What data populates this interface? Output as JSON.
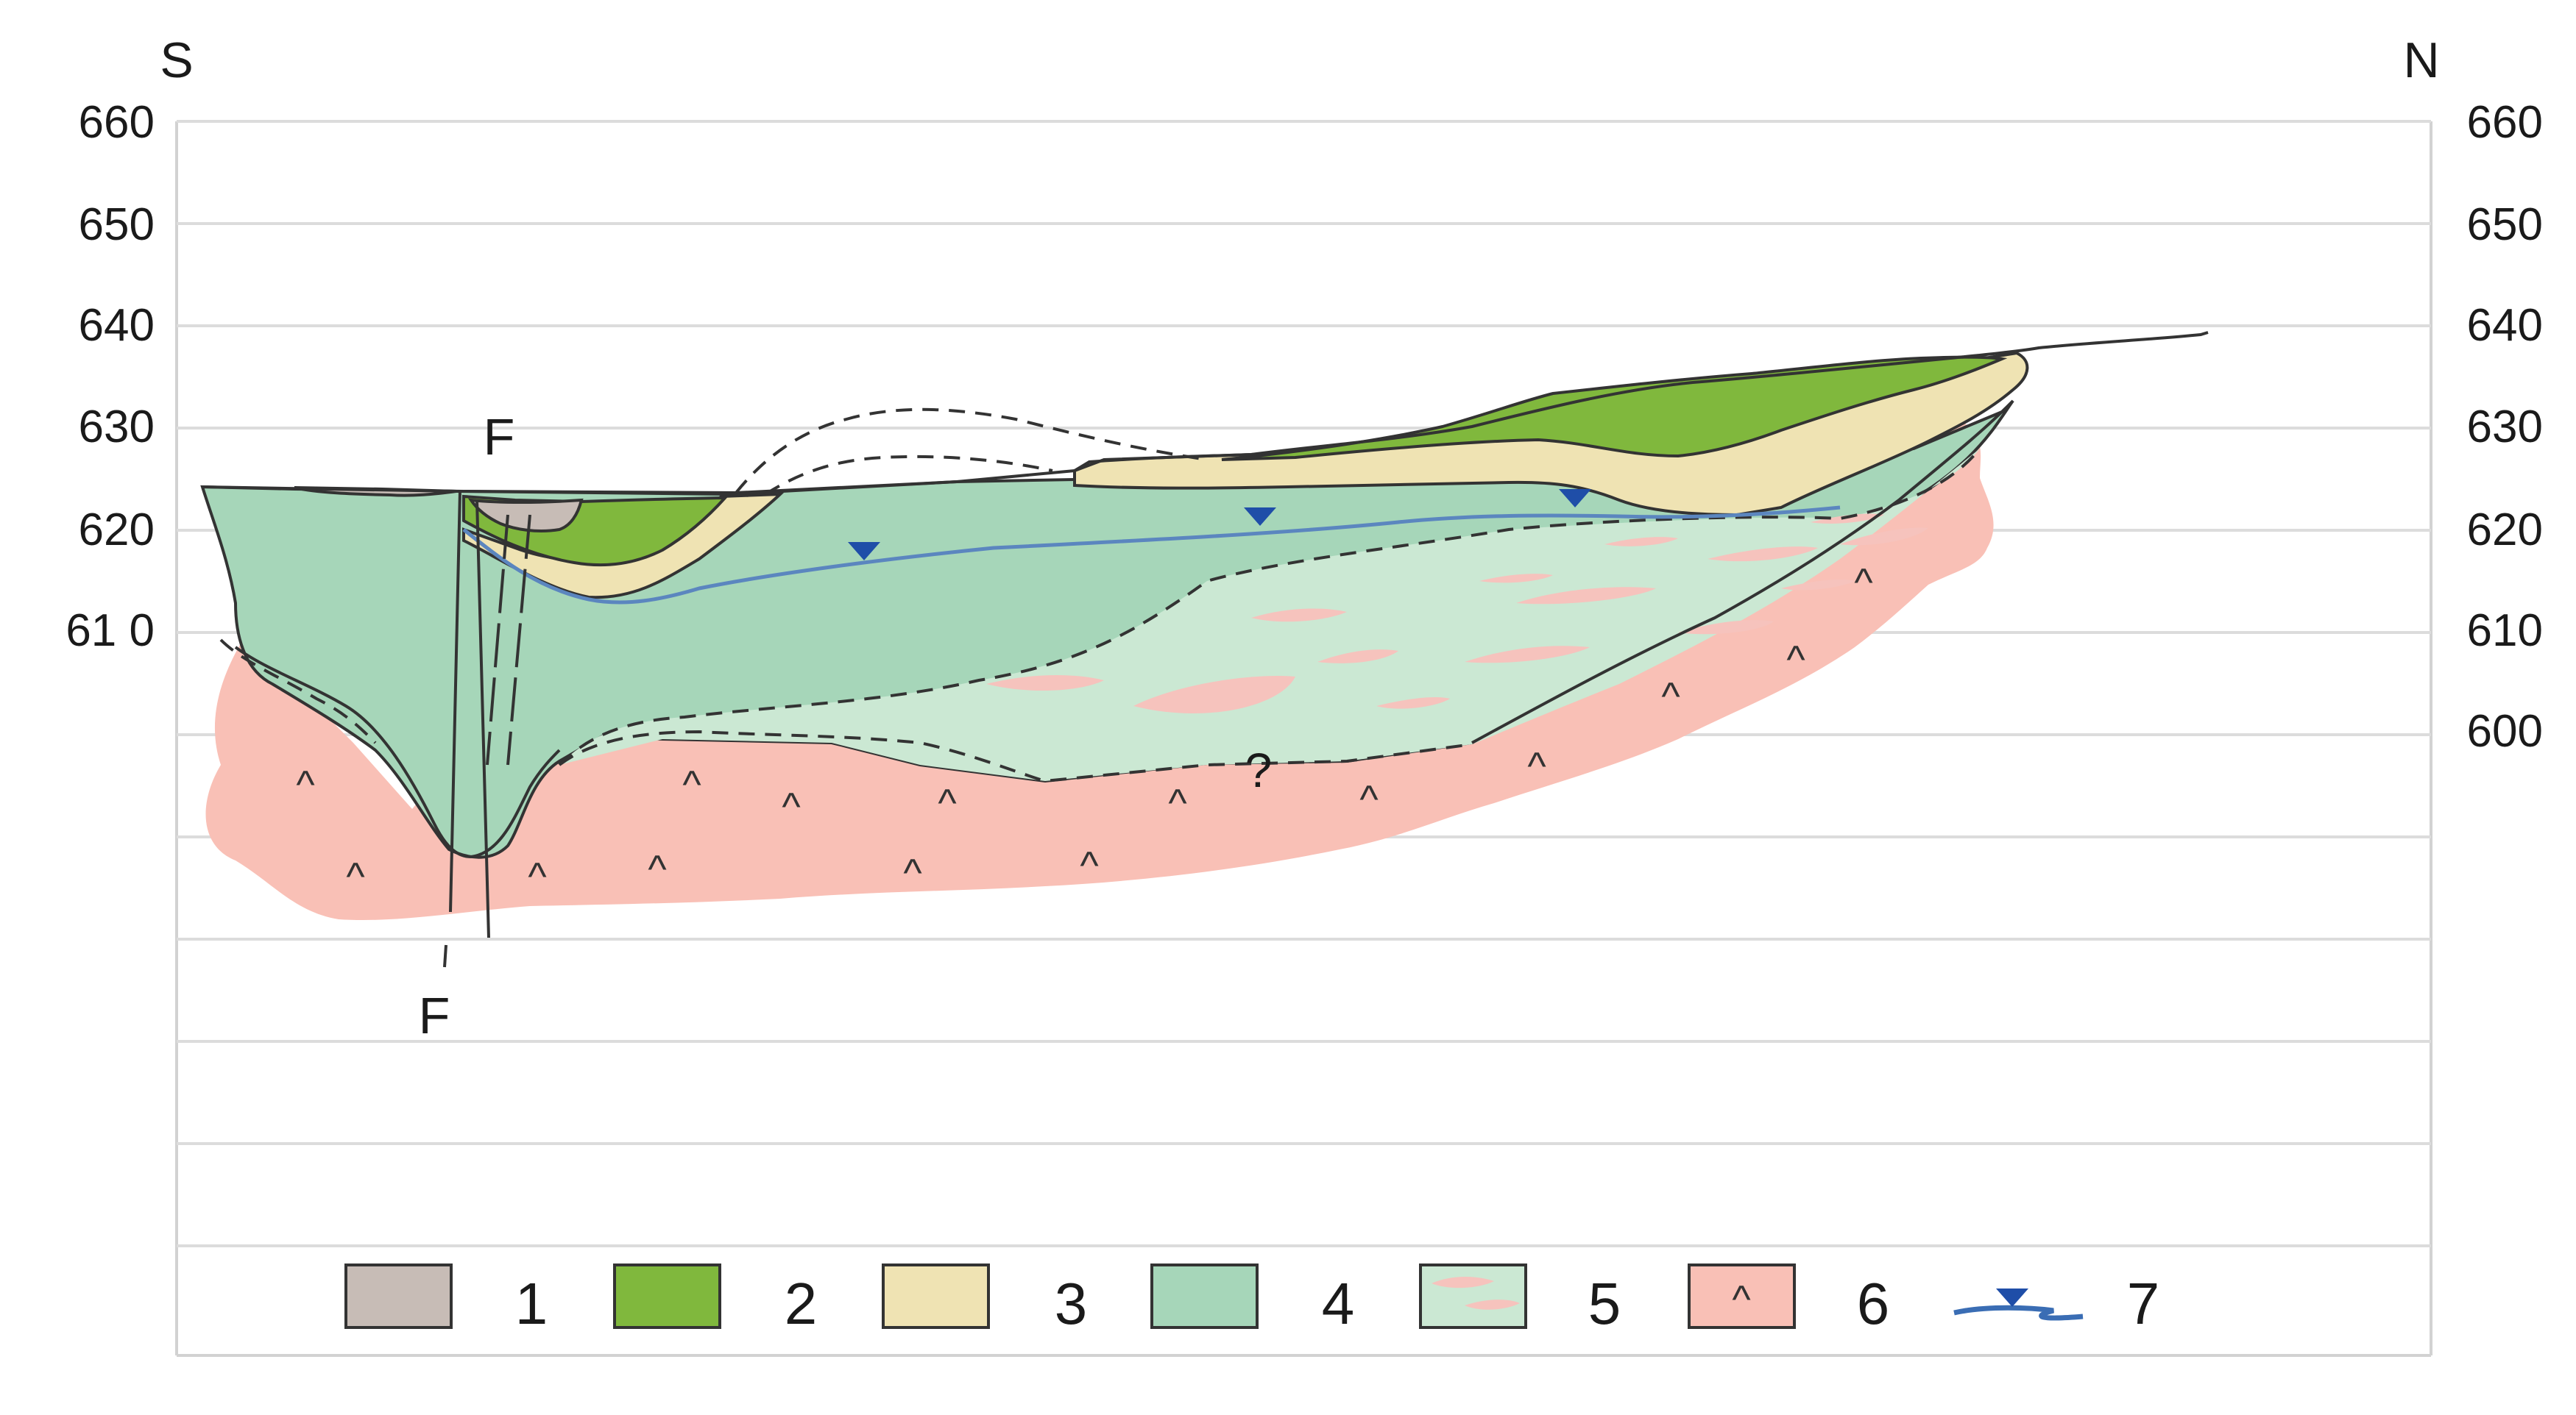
{
  "diagram": {
    "type": "geological-cross-section",
    "direction_left": "S",
    "direction_right": "N",
    "left_axis_labels": [
      "660",
      "650",
      "640",
      "630",
      "620",
      "61 0"
    ],
    "right_axis_labels": [
      "660",
      "650",
      "640",
      "630",
      "620",
      "610",
      "600"
    ],
    "fault_label_top": "F",
    "fault_label_bottom": "F",
    "uncertain_mark": "?",
    "bedrock_symbol": "^"
  },
  "legend": {
    "items": [
      {
        "number": "1",
        "color": "#c7bcb6"
      },
      {
        "number": "2",
        "color": "#80b83d"
      },
      {
        "number": "3",
        "color": "#efe3b3"
      },
      {
        "number": "4",
        "color": "#a6d6b9"
      },
      {
        "number": "5",
        "color": "#cbe8d3"
      },
      {
        "number": "6",
        "color": "#f9c0b6"
      },
      {
        "number": "7",
        "color": "#3a6db4"
      }
    ]
  },
  "colors": {
    "unit1_fill": "#c7bcb6",
    "unit2_fill": "#80b83d",
    "unit3_fill": "#efe3b3",
    "unit4_fill": "#a6d6b9",
    "unit5_fill": "#cbe8d3",
    "unit5_lens": "#f6c3bd",
    "unit6_fill": "#f9c0b6",
    "water_table": "#5b86bf",
    "water_marker": "#1f4ea8",
    "gridline": "#d7d7d7",
    "outline": "#333333"
  }
}
